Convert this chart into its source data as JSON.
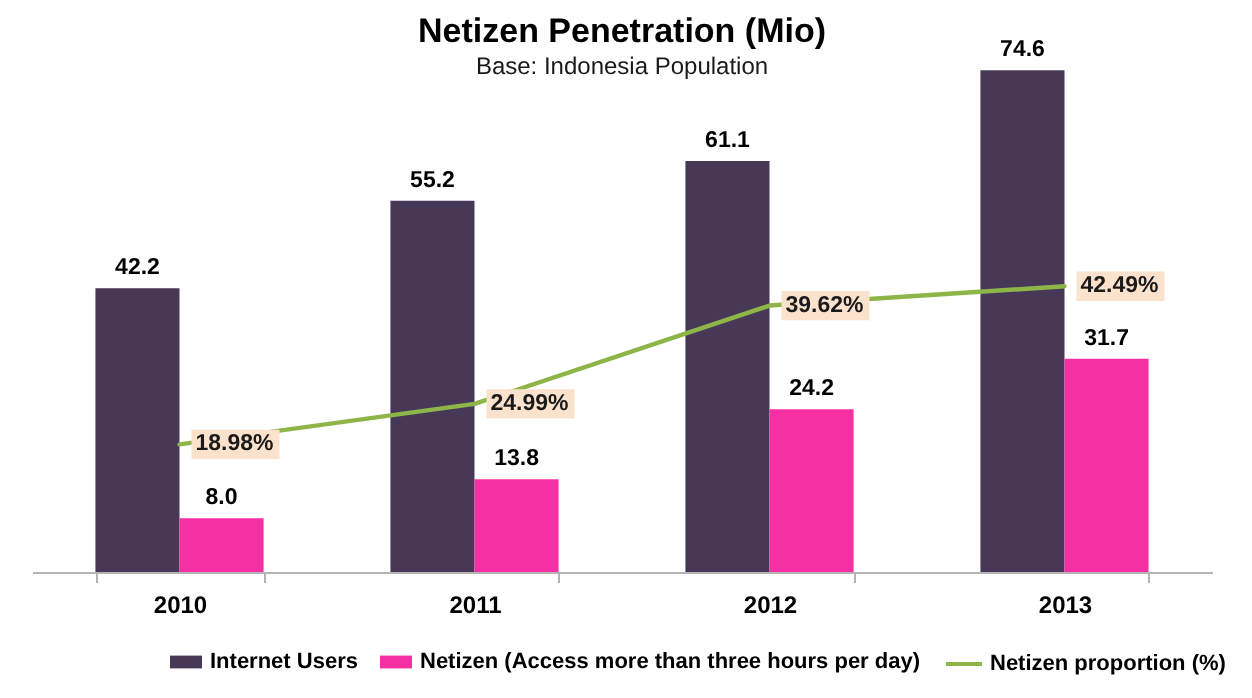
{
  "chart_data": {
    "type": "bar",
    "title": "Netizen Penetration (Mio)",
    "subtitle": "Base: Indonesia Population",
    "categories": [
      "2010",
      "2011",
      "2012",
      "2013"
    ],
    "series": [
      {
        "name": "Internet Users",
        "color": "#473858",
        "values": [
          42.2,
          55.2,
          61.1,
          74.6
        ],
        "value_labels": [
          "42.2",
          "55.2",
          "61.1",
          "74.6"
        ]
      },
      {
        "name": "Netizen (Access more than three hours per day)",
        "color": "#f72fa5",
        "values": [
          8.0,
          13.8,
          24.2,
          31.7
        ],
        "value_labels": [
          "8.0",
          "13.8",
          "24.2",
          "31.7"
        ]
      },
      {
        "name": "Netizen proportion (%)",
        "type": "line",
        "color": "#8db548",
        "values": [
          18.98,
          24.99,
          39.62,
          42.49
        ],
        "value_labels": [
          "18.98%",
          "24.99%",
          "39.62%",
          "42.49%"
        ]
      }
    ],
    "legend": "bottom",
    "tick_labels": "x"
  }
}
